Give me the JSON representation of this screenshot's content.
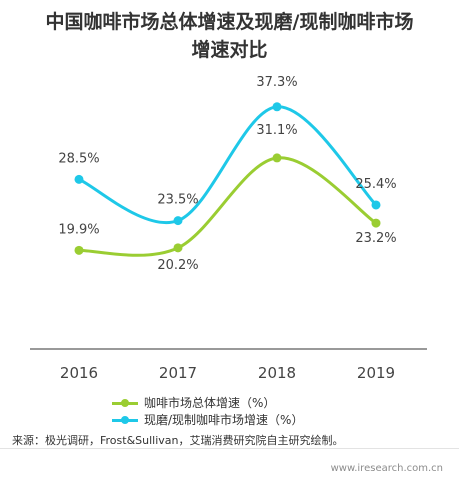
{
  "chart_data": {
    "type": "line",
    "title_lines": [
      "中国咖啡市场总体增速及现磨/现制咖啡市场",
      "增速对比"
    ],
    "categories": [
      "2016",
      "2017",
      "2018",
      "2019"
    ],
    "series": [
      {
        "name": "咖啡市场总体增速（%）",
        "values": [
          19.9,
          20.2,
          31.1,
          23.2
        ],
        "labels": [
          "19.9%",
          "20.2%",
          "31.1%",
          "23.2%"
        ],
        "color": "#9ACD32"
      },
      {
        "name": "现磨/现制咖啡市场增速（%）",
        "values": [
          28.5,
          23.5,
          37.3,
          25.4
        ],
        "labels": [
          "28.5%",
          "23.5%",
          "37.3%",
          "25.4%"
        ],
        "color": "#1EC8E8"
      }
    ],
    "axis_color": "#333333",
    "grid": false
  },
  "source": "来源：极光调研，Frost&Sullivan，艾瑞消费研究院自主研究绘制。",
  "watermark": "www.iresearch.com.cn"
}
